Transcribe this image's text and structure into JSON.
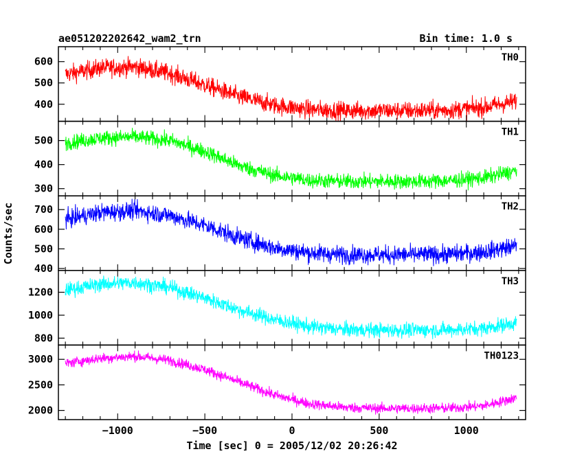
{
  "chart_data": {
    "type": "line",
    "title": "ae051202202642_wam2_trn",
    "bin_time_label": "Bin time: 1.0 s",
    "xlabel": "Time [sec] 0 = 2005/12/02 20:26:42",
    "ylabel": "Counts/sec",
    "xlim": [
      -1340,
      1340
    ],
    "x_ticks": [
      -1000,
      -500,
      0,
      500,
      1000
    ],
    "x_tick_labels": [
      "−1000",
      "−500",
      "0",
      "500",
      "1000"
    ],
    "x_range": [
      -1300,
      1290
    ],
    "panels": [
      {
        "name": "TH0",
        "color": "#ff0000",
        "ylim": [
          320,
          670
        ],
        "y_ticks": [
          400,
          500,
          600
        ],
        "y_tick_labels": [
          "400",
          "500",
          "600"
        ],
        "noise": 30,
        "trend": [
          [
            -1300,
            540
          ],
          [
            -1100,
            570
          ],
          [
            -900,
            575
          ],
          [
            -700,
            545
          ],
          [
            -500,
            490
          ],
          [
            -300,
            435
          ],
          [
            -100,
            395
          ],
          [
            100,
            375
          ],
          [
            300,
            370
          ],
          [
            500,
            370
          ],
          [
            700,
            370
          ],
          [
            900,
            372
          ],
          [
            1100,
            385
          ],
          [
            1290,
            415
          ]
        ]
      },
      {
        "name": "TH1",
        "color": "#00ff00",
        "ylim": [
          270,
          580
        ],
        "y_ticks": [
          300,
          400,
          500
        ],
        "y_tick_labels": [
          "300",
          "400",
          "500"
        ],
        "noise": 22,
        "trend": [
          [
            -1300,
            490
          ],
          [
            -1100,
            510
          ],
          [
            -900,
            515
          ],
          [
            -700,
            500
          ],
          [
            -500,
            455
          ],
          [
            -300,
            395
          ],
          [
            -100,
            355
          ],
          [
            100,
            335
          ],
          [
            300,
            330
          ],
          [
            500,
            330
          ],
          [
            700,
            330
          ],
          [
            900,
            333
          ],
          [
            1100,
            345
          ],
          [
            1290,
            375
          ]
        ]
      },
      {
        "name": "TH2",
        "color": "#0000ff",
        "ylim": [
          390,
          770
        ],
        "y_ticks": [
          400,
          500,
          600,
          700
        ],
        "y_tick_labels": [
          "400",
          "500",
          "600",
          "700"
        ],
        "noise": 32,
        "trend": [
          [
            -1300,
            650
          ],
          [
            -1100,
            685
          ],
          [
            -900,
            695
          ],
          [
            -700,
            670
          ],
          [
            -500,
            620
          ],
          [
            -300,
            555
          ],
          [
            -100,
            505
          ],
          [
            100,
            480
          ],
          [
            300,
            470
          ],
          [
            500,
            470
          ],
          [
            700,
            470
          ],
          [
            900,
            472
          ],
          [
            1100,
            485
          ],
          [
            1290,
            515
          ]
        ]
      },
      {
        "name": "TH3",
        "color": "#00ffff",
        "ylim": [
          740,
          1390
        ],
        "y_ticks": [
          800,
          1000,
          1200
        ],
        "y_tick_labels": [
          "800",
          "1000",
          "1200"
        ],
        "noise": 45,
        "trend": [
          [
            -1300,
            1220
          ],
          [
            -1100,
            1270
          ],
          [
            -900,
            1285
          ],
          [
            -700,
            1240
          ],
          [
            -500,
            1150
          ],
          [
            -300,
            1045
          ],
          [
            -100,
            960
          ],
          [
            100,
            900
          ],
          [
            300,
            875
          ],
          [
            500,
            870
          ],
          [
            700,
            870
          ],
          [
            900,
            872
          ],
          [
            1100,
            885
          ],
          [
            1290,
            935
          ]
        ]
      },
      {
        "name": "TH0123",
        "color": "#ff00ff",
        "ylim": [
          1820,
          3280
        ],
        "y_ticks": [
          2000,
          2500,
          3000
        ],
        "y_tick_labels": [
          "2000",
          "2500",
          "3000"
        ],
        "noise": 70,
        "trend": [
          [
            -1300,
            2920
          ],
          [
            -1100,
            3020
          ],
          [
            -900,
            3060
          ],
          [
            -700,
            2980
          ],
          [
            -500,
            2800
          ],
          [
            -300,
            2550
          ],
          [
            -100,
            2300
          ],
          [
            100,
            2130
          ],
          [
            300,
            2060
          ],
          [
            500,
            2040
          ],
          [
            700,
            2040
          ],
          [
            900,
            2045
          ],
          [
            1100,
            2090
          ],
          [
            1290,
            2250
          ]
        ]
      }
    ]
  }
}
